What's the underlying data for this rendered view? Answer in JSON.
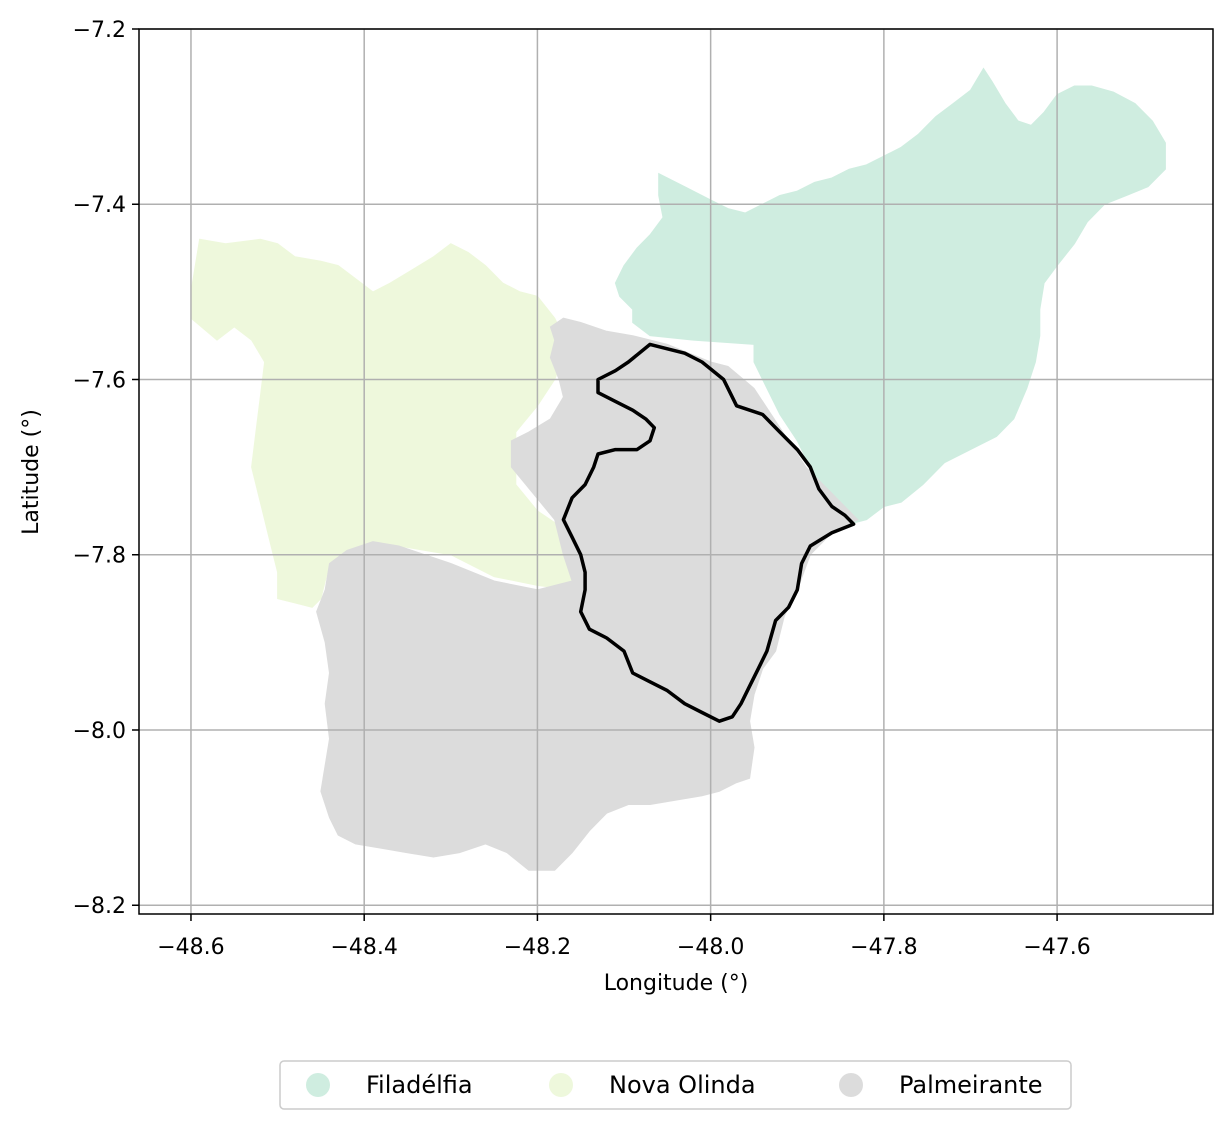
{
  "chart_data": {
    "type": "map",
    "xlabel": "Longitude (°)",
    "ylabel": "Latitude (°)",
    "xlim": [
      -48.66,
      -47.42
    ],
    "ylim": [
      -8.21,
      -7.2
    ],
    "xticks": [
      -48.6,
      -48.4,
      -48.2,
      -48.0,
      -47.8,
      -47.6
    ],
    "yticks": [
      -7.2,
      -7.4,
      -7.6,
      -7.8,
      -8.0,
      -8.2
    ],
    "xtick_labels": [
      "−48.6",
      "−48.4",
      "−48.2",
      "−48.0",
      "−47.8",
      "−47.6"
    ],
    "ytick_labels": [
      "−7.2",
      "−7.4",
      "−7.6",
      "−7.8",
      "−8.0",
      "−8.2"
    ],
    "grid": true,
    "legend_position": "bottom-center",
    "regions": [
      {
        "name": "Filadélfia",
        "color": "#cfede0",
        "polygon": [
          [
            -47.95,
            -7.56
          ],
          [
            -48.02,
            -7.555
          ],
          [
            -48.07,
            -7.55
          ],
          [
            -48.09,
            -7.535
          ],
          [
            -48.09,
            -7.52
          ],
          [
            -48.105,
            -7.505
          ],
          [
            -48.11,
            -7.49
          ],
          [
            -48.1,
            -7.47
          ],
          [
            -48.085,
            -7.45
          ],
          [
            -48.07,
            -7.435
          ],
          [
            -48.055,
            -7.415
          ],
          [
            -48.06,
            -7.39
          ],
          [
            -48.06,
            -7.365
          ],
          [
            -48.03,
            -7.38
          ],
          [
            -48.0,
            -7.395
          ],
          [
            -47.98,
            -7.405
          ],
          [
            -47.96,
            -7.41
          ],
          [
            -47.94,
            -7.4
          ],
          [
            -47.92,
            -7.39
          ],
          [
            -47.9,
            -7.385
          ],
          [
            -47.88,
            -7.375
          ],
          [
            -47.86,
            -7.37
          ],
          [
            -47.84,
            -7.36
          ],
          [
            -47.82,
            -7.355
          ],
          [
            -47.8,
            -7.345
          ],
          [
            -47.78,
            -7.335
          ],
          [
            -47.76,
            -7.32
          ],
          [
            -47.74,
            -7.3
          ],
          [
            -47.72,
            -7.285
          ],
          [
            -47.7,
            -7.27
          ],
          [
            -47.685,
            -7.245
          ],
          [
            -47.675,
            -7.26
          ],
          [
            -47.66,
            -7.285
          ],
          [
            -47.645,
            -7.305
          ],
          [
            -47.63,
            -7.31
          ],
          [
            -47.615,
            -7.295
          ],
          [
            -47.6,
            -7.275
          ],
          [
            -47.58,
            -7.265
          ],
          [
            -47.56,
            -7.265
          ],
          [
            -47.535,
            -7.272
          ],
          [
            -47.51,
            -7.285
          ],
          [
            -47.49,
            -7.305
          ],
          [
            -47.475,
            -7.33
          ],
          [
            -47.475,
            -7.36
          ],
          [
            -47.495,
            -7.38
          ],
          [
            -47.52,
            -7.39
          ],
          [
            -47.545,
            -7.4
          ],
          [
            -47.565,
            -7.42
          ],
          [
            -47.58,
            -7.445
          ],
          [
            -47.6,
            -7.47
          ],
          [
            -47.615,
            -7.49
          ],
          [
            -47.62,
            -7.52
          ],
          [
            -47.62,
            -7.55
          ],
          [
            -47.625,
            -7.58
          ],
          [
            -47.635,
            -7.61
          ],
          [
            -47.65,
            -7.645
          ],
          [
            -47.67,
            -7.665
          ],
          [
            -47.7,
            -7.68
          ],
          [
            -47.73,
            -7.695
          ],
          [
            -47.755,
            -7.72
          ],
          [
            -47.78,
            -7.74
          ],
          [
            -47.8,
            -7.745
          ],
          [
            -47.82,
            -7.76
          ],
          [
            -47.84,
            -7.765
          ],
          [
            -47.855,
            -7.755
          ],
          [
            -47.87,
            -7.73
          ],
          [
            -47.885,
            -7.7
          ],
          [
            -47.9,
            -7.67
          ],
          [
            -47.92,
            -7.64
          ],
          [
            -47.935,
            -7.61
          ],
          [
            -47.95,
            -7.58
          ]
        ]
      },
      {
        "name": "Nova Olinda",
        "color": "#eef8dc",
        "polygon": [
          [
            -48.59,
            -7.44
          ],
          [
            -48.56,
            -7.445
          ],
          [
            -48.52,
            -7.44
          ],
          [
            -48.5,
            -7.445
          ],
          [
            -48.48,
            -7.46
          ],
          [
            -48.45,
            -7.465
          ],
          [
            -48.43,
            -7.47
          ],
          [
            -48.41,
            -7.485
          ],
          [
            -48.39,
            -7.5
          ],
          [
            -48.37,
            -7.49
          ],
          [
            -48.345,
            -7.475
          ],
          [
            -48.32,
            -7.46
          ],
          [
            -48.3,
            -7.445
          ],
          [
            -48.28,
            -7.455
          ],
          [
            -48.26,
            -7.47
          ],
          [
            -48.24,
            -7.49
          ],
          [
            -48.22,
            -7.5
          ],
          [
            -48.2,
            -7.505
          ],
          [
            -48.18,
            -7.53
          ],
          [
            -48.165,
            -7.56
          ],
          [
            -48.18,
            -7.6
          ],
          [
            -48.2,
            -7.63
          ],
          [
            -48.225,
            -7.66
          ],
          [
            -48.225,
            -7.72
          ],
          [
            -48.2,
            -7.75
          ],
          [
            -48.17,
            -7.77
          ],
          [
            -48.15,
            -7.8
          ],
          [
            -48.14,
            -7.83
          ],
          [
            -48.16,
            -7.84
          ],
          [
            -48.2,
            -7.835
          ],
          [
            -48.25,
            -7.825
          ],
          [
            -48.3,
            -7.8
          ],
          [
            -48.33,
            -7.795
          ],
          [
            -48.36,
            -7.79
          ],
          [
            -48.39,
            -7.785
          ],
          [
            -48.42,
            -7.795
          ],
          [
            -48.44,
            -7.81
          ],
          [
            -48.45,
            -7.85
          ],
          [
            -48.46,
            -7.86
          ],
          [
            -48.48,
            -7.855
          ],
          [
            -48.5,
            -7.85
          ],
          [
            -48.5,
            -7.82
          ],
          [
            -48.51,
            -7.78
          ],
          [
            -48.52,
            -7.74
          ],
          [
            -48.53,
            -7.7
          ],
          [
            -48.525,
            -7.66
          ],
          [
            -48.52,
            -7.62
          ],
          [
            -48.515,
            -7.58
          ],
          [
            -48.53,
            -7.555
          ],
          [
            -48.55,
            -7.54
          ],
          [
            -48.57,
            -7.555
          ],
          [
            -48.6,
            -7.53
          ],
          [
            -48.6,
            -7.5
          ]
        ]
      },
      {
        "name": "Palmeirante",
        "color": "#dcdcdc",
        "polygon": [
          [
            -48.185,
            -7.54
          ],
          [
            -48.18,
            -7.555
          ],
          [
            -48.185,
            -7.575
          ],
          [
            -48.175,
            -7.6
          ],
          [
            -48.17,
            -7.62
          ],
          [
            -48.185,
            -7.645
          ],
          [
            -48.21,
            -7.66
          ],
          [
            -48.23,
            -7.67
          ],
          [
            -48.23,
            -7.7
          ],
          [
            -48.205,
            -7.73
          ],
          [
            -48.18,
            -7.76
          ],
          [
            -48.17,
            -7.8
          ],
          [
            -48.16,
            -7.83
          ],
          [
            -48.2,
            -7.84
          ],
          [
            -48.25,
            -7.83
          ],
          [
            -48.3,
            -7.81
          ],
          [
            -48.33,
            -7.8
          ],
          [
            -48.36,
            -7.79
          ],
          [
            -48.39,
            -7.785
          ],
          [
            -48.42,
            -7.795
          ],
          [
            -48.44,
            -7.81
          ],
          [
            -48.445,
            -7.84
          ],
          [
            -48.455,
            -7.865
          ],
          [
            -48.445,
            -7.9
          ],
          [
            -48.44,
            -7.935
          ],
          [
            -48.445,
            -7.97
          ],
          [
            -48.44,
            -8.01
          ],
          [
            -48.445,
            -8.04
          ],
          [
            -48.45,
            -8.07
          ],
          [
            -48.44,
            -8.1
          ],
          [
            -48.43,
            -8.12
          ],
          [
            -48.41,
            -8.13
          ],
          [
            -48.38,
            -8.135
          ],
          [
            -48.35,
            -8.14
          ],
          [
            -48.32,
            -8.145
          ],
          [
            -48.29,
            -8.14
          ],
          [
            -48.26,
            -8.13
          ],
          [
            -48.235,
            -8.14
          ],
          [
            -48.21,
            -8.16
          ],
          [
            -48.18,
            -8.16
          ],
          [
            -48.16,
            -8.14
          ],
          [
            -48.14,
            -8.115
          ],
          [
            -48.12,
            -8.095
          ],
          [
            -48.095,
            -8.085
          ],
          [
            -48.07,
            -8.085
          ],
          [
            -48.04,
            -8.08
          ],
          [
            -48.01,
            -8.075
          ],
          [
            -47.99,
            -8.07
          ],
          [
            -47.97,
            -8.06
          ],
          [
            -47.955,
            -8.055
          ],
          [
            -47.95,
            -8.02
          ],
          [
            -47.955,
            -7.99
          ],
          [
            -47.95,
            -7.96
          ],
          [
            -47.94,
            -7.93
          ],
          [
            -47.925,
            -7.91
          ],
          [
            -47.915,
            -7.87
          ],
          [
            -47.9,
            -7.84
          ],
          [
            -47.885,
            -7.8
          ],
          [
            -47.86,
            -7.775
          ],
          [
            -47.84,
            -7.765
          ],
          [
            -47.83,
            -7.76
          ],
          [
            -47.86,
            -7.73
          ],
          [
            -47.89,
            -7.7
          ],
          [
            -47.92,
            -7.655
          ],
          [
            -47.95,
            -7.61
          ],
          [
            -47.98,
            -7.585
          ],
          [
            -48.0,
            -7.58
          ],
          [
            -48.05,
            -7.56
          ],
          [
            -48.09,
            -7.55
          ],
          [
            -48.12,
            -7.545
          ],
          [
            -48.15,
            -7.535
          ],
          [
            -48.17,
            -7.53
          ]
        ]
      }
    ],
    "boundary": {
      "color": "#000000",
      "polygon": [
        [
          -48.07,
          -7.56
        ],
        [
          -48.05,
          -7.565
        ],
        [
          -48.03,
          -7.57
        ],
        [
          -48.01,
          -7.58
        ],
        [
          -47.985,
          -7.6
        ],
        [
          -47.97,
          -7.63
        ],
        [
          -47.94,
          -7.64
        ],
        [
          -47.92,
          -7.66
        ],
        [
          -47.9,
          -7.68
        ],
        [
          -47.885,
          -7.7
        ],
        [
          -47.875,
          -7.725
        ],
        [
          -47.86,
          -7.745
        ],
        [
          -47.845,
          -7.755
        ],
        [
          -47.835,
          -7.765
        ],
        [
          -47.86,
          -7.775
        ],
        [
          -47.885,
          -7.79
        ],
        [
          -47.895,
          -7.81
        ],
        [
          -47.9,
          -7.84
        ],
        [
          -47.91,
          -7.86
        ],
        [
          -47.925,
          -7.875
        ],
        [
          -47.935,
          -7.91
        ],
        [
          -47.945,
          -7.93
        ],
        [
          -47.955,
          -7.95
        ],
        [
          -47.965,
          -7.97
        ],
        [
          -47.975,
          -7.985
        ],
        [
          -47.99,
          -7.99
        ],
        [
          -48.01,
          -7.98
        ],
        [
          -48.03,
          -7.97
        ],
        [
          -48.05,
          -7.955
        ],
        [
          -48.07,
          -7.945
        ],
        [
          -48.09,
          -7.935
        ],
        [
          -48.1,
          -7.91
        ],
        [
          -48.12,
          -7.895
        ],
        [
          -48.14,
          -7.885
        ],
        [
          -48.15,
          -7.865
        ],
        [
          -48.145,
          -7.84
        ],
        [
          -48.145,
          -7.82
        ],
        [
          -48.15,
          -7.8
        ],
        [
          -48.16,
          -7.78
        ],
        [
          -48.17,
          -7.76
        ],
        [
          -48.16,
          -7.735
        ],
        [
          -48.145,
          -7.72
        ],
        [
          -48.135,
          -7.7
        ],
        [
          -48.13,
          -7.685
        ],
        [
          -48.11,
          -7.68
        ],
        [
          -48.085,
          -7.68
        ],
        [
          -48.07,
          -7.67
        ],
        [
          -48.065,
          -7.655
        ],
        [
          -48.075,
          -7.645
        ],
        [
          -48.09,
          -7.635
        ],
        [
          -48.11,
          -7.625
        ],
        [
          -48.13,
          -7.615
        ],
        [
          -48.13,
          -7.6
        ],
        [
          -48.11,
          -7.59
        ],
        [
          -48.095,
          -7.58
        ]
      ]
    }
  }
}
